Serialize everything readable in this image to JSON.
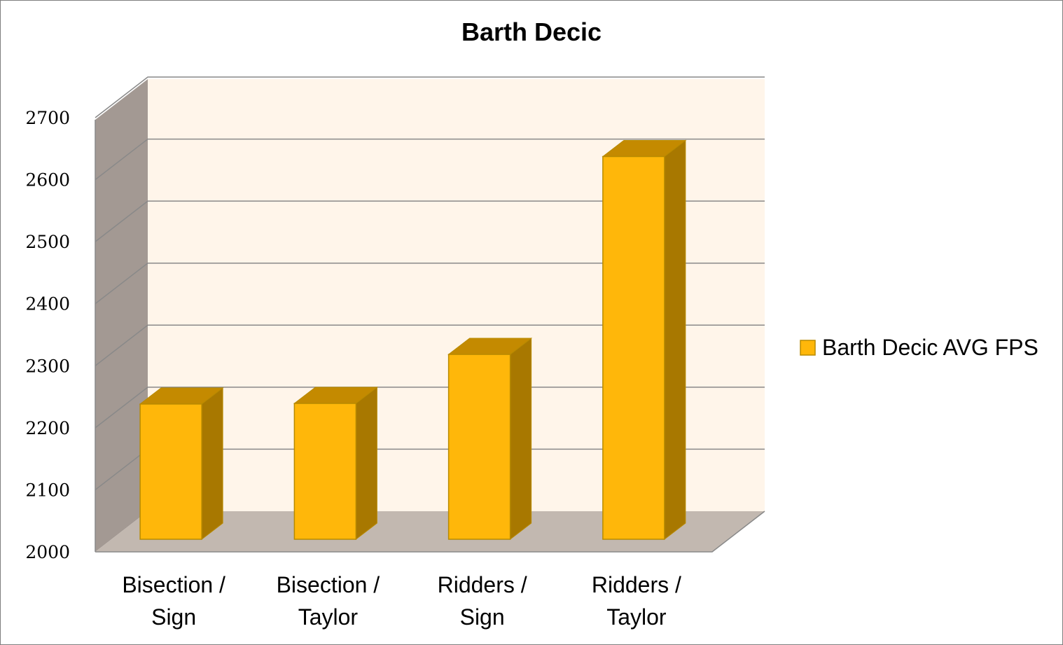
{
  "chart_data": {
    "type": "bar",
    "title": "Barth Decic",
    "xlabel": "",
    "ylabel": "",
    "categories": [
      [
        "Bisection /",
        "Sign"
      ],
      [
        "Bisection /",
        "Taylor"
      ],
      [
        "Ridders /",
        "Sign"
      ],
      [
        "Ridders /",
        "Taylor"
      ]
    ],
    "series": [
      {
        "name": "Barth Decic AVG FPS",
        "values": [
          2218,
          2219,
          2298,
          2617
        ]
      }
    ],
    "ylim": [
      2000,
      2700
    ],
    "yticks": [
      "2000",
      "2100",
      "2200",
      "2300",
      "2400",
      "2500",
      "2600",
      "2700"
    ],
    "grid": true,
    "legend": "right",
    "three_d": true,
    "colors": {
      "bar_front": "#FFB70A",
      "bar_top": "#C48A00",
      "bar_side": "#A87800",
      "bar_stroke": "#B88A00",
      "back_wall": "#FFF5EA",
      "side_wall": "#A39993",
      "floor": "#C2B8B0",
      "gridline": "#898989"
    }
  }
}
